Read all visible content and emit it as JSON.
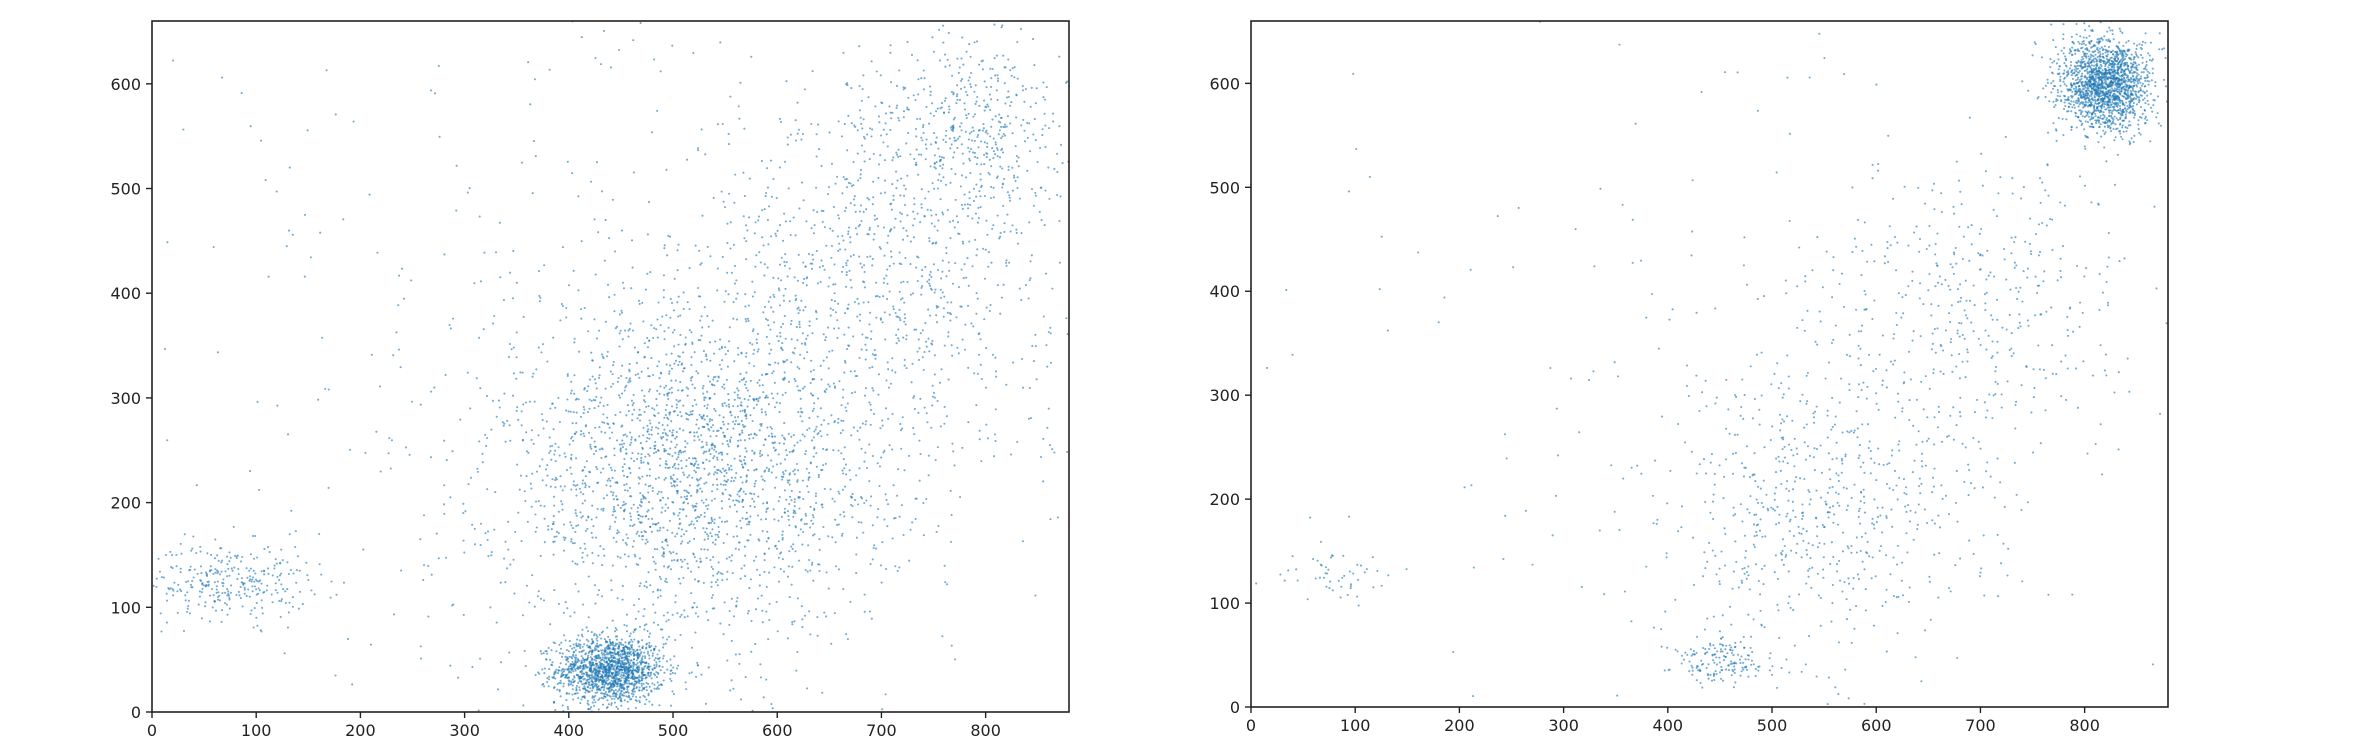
{
  "chart_data": [
    {
      "type": "scatter",
      "xlim": [
        0,
        880
      ],
      "ylim": [
        0,
        660
      ],
      "x_ticks": [
        0,
        100,
        200,
        300,
        400,
        500,
        600,
        700,
        800
      ],
      "y_ticks": [
        0,
        100,
        200,
        300,
        400,
        500,
        600
      ],
      "grid": false,
      "color": "#1f77b4",
      "clusters": [
        {
          "center": [
            440,
            40
          ],
          "spread": [
            26,
            16
          ],
          "count": 1500
        },
        {
          "center": [
            75,
            125
          ],
          "spread": [
            38,
            18
          ],
          "count": 300
        },
        {
          "center": [
            520,
            230
          ],
          "spread": [
            95,
            80
          ],
          "count": 2200
        },
        {
          "center": [
            700,
            430
          ],
          "spread": [
            85,
            90
          ],
          "count": 900
        },
        {
          "center": [
            790,
            560
          ],
          "spread": [
            45,
            45
          ],
          "count": 400
        },
        {
          "center": [
            440,
            330
          ],
          "spread": [
            260,
            200
          ],
          "count": 450
        }
      ]
    },
    {
      "type": "scatter",
      "xlim": [
        0,
        880
      ],
      "ylim": [
        0,
        660
      ],
      "x_ticks": [
        0,
        100,
        200,
        300,
        400,
        500,
        600,
        700,
        800
      ],
      "y_ticks": [
        0,
        100,
        200,
        300,
        400,
        500,
        600
      ],
      "grid": false,
      "color": "#1f77b4",
      "clusters": [
        {
          "center": [
            820,
            600
          ],
          "spread": [
            22,
            22
          ],
          "count": 1700
        },
        {
          "center": [
            450,
            45
          ],
          "spread": [
            22,
            12
          ],
          "count": 160
        },
        {
          "center": [
            80,
            125
          ],
          "spread": [
            25,
            15
          ],
          "count": 50
        },
        {
          "center": [
            540,
            190
          ],
          "spread": [
            75,
            70
          ],
          "count": 600
        },
        {
          "center": [
            680,
            380
          ],
          "spread": [
            85,
            80
          ],
          "count": 450
        },
        {
          "center": [
            440,
            330
          ],
          "spread": [
            260,
            200
          ],
          "count": 180
        }
      ]
    }
  ]
}
